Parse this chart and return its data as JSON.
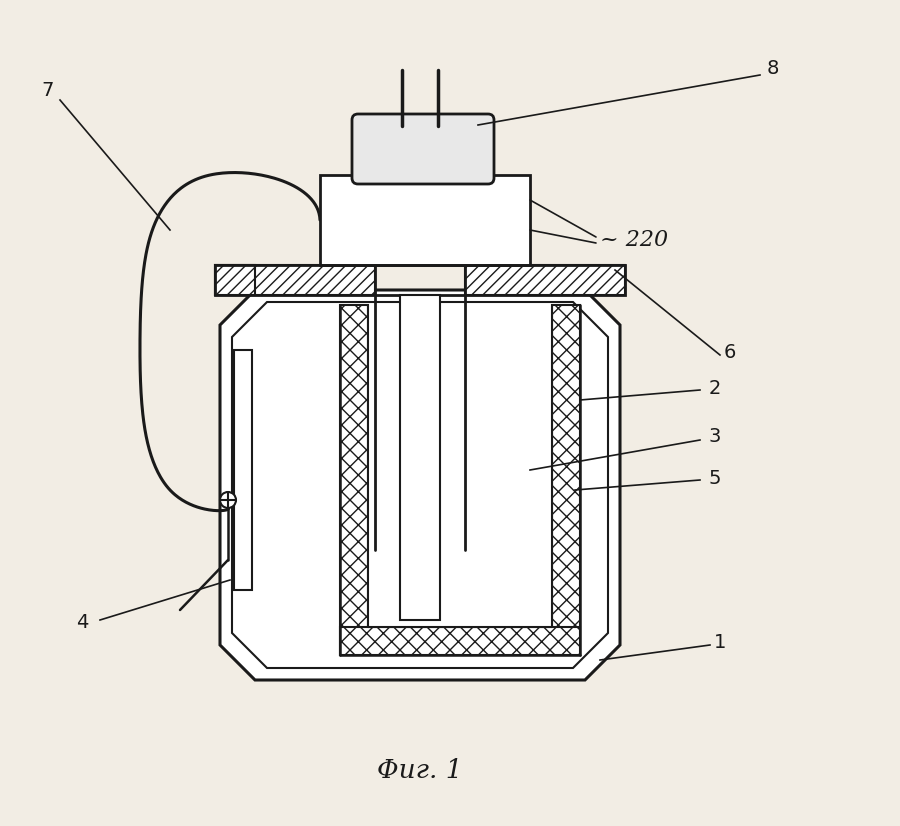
{
  "bg_color": "#f2ede4",
  "line_color": "#1a1a1a",
  "title": "Φиг. 1",
  "label_220": "~ 220",
  "figsize": [
    9.0,
    8.26
  ],
  "dpi": 100
}
